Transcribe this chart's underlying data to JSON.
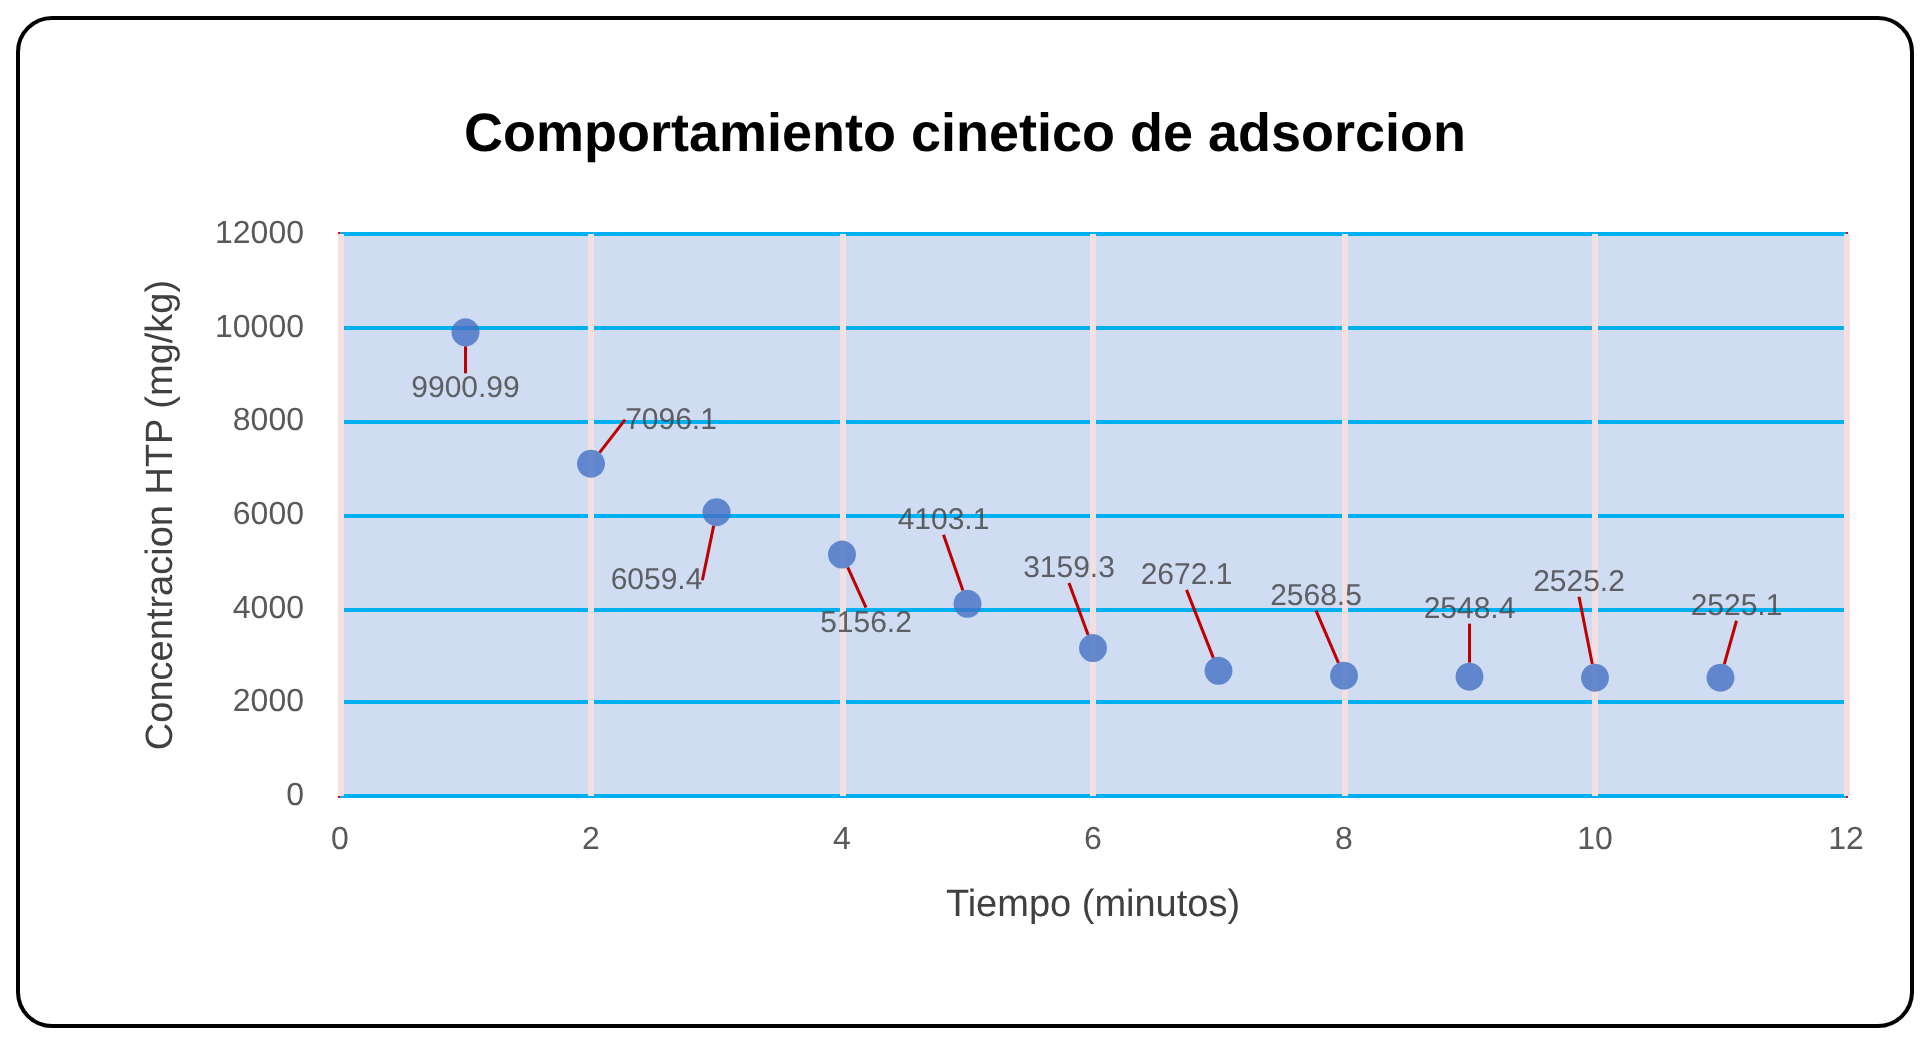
{
  "chart_data": {
    "type": "scatter",
    "title": "Comportamiento cinetico de adsorcion",
    "xlabel": "Tiempo (minutos)",
    "ylabel": "Concentracion HTP (mg/kg)",
    "x": [
      1,
      2,
      3,
      4,
      5,
      6,
      7,
      8,
      9,
      10,
      11
    ],
    "values": [
      9900.99,
      7096.1,
      6059.4,
      5156.2,
      4103.1,
      3159.3,
      2672.1,
      2568.5,
      2548.4,
      2525.2,
      2525.1
    ],
    "color": "#4472c4",
    "xlim": [
      0,
      12
    ],
    "xticks": [
      0,
      2,
      4,
      6,
      8,
      10,
      12
    ],
    "ylim": [
      0,
      12000
    ],
    "yticks": [
      0,
      2000,
      4000,
      6000,
      8000,
      10000,
      12000
    ],
    "grid": true,
    "marker": "circle",
    "data_labels": true
  }
}
